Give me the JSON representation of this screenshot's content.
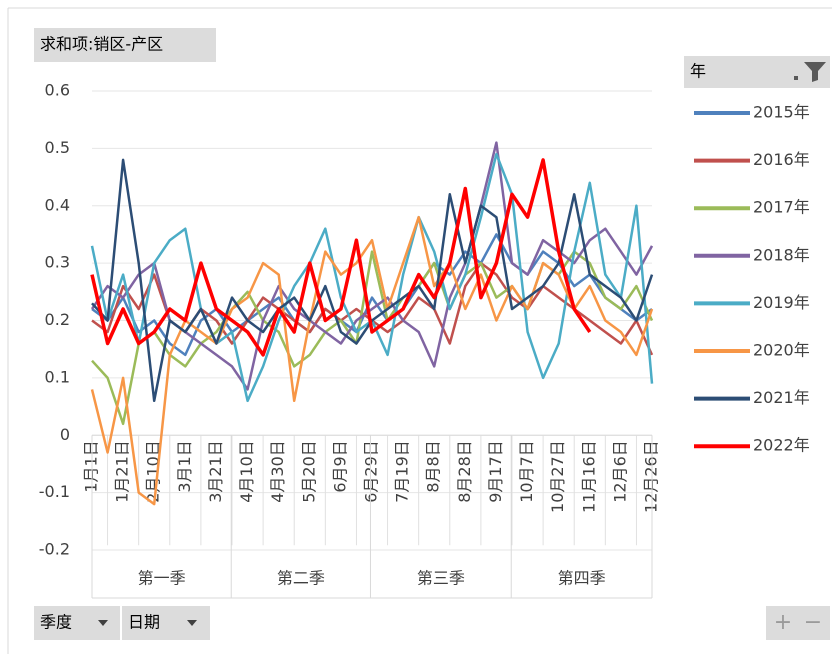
{
  "chart_data": {
    "type": "line",
    "title": "求和项:销区-产区",
    "legend_title": "年",
    "filter_buttons": [
      "季度",
      "日期"
    ],
    "zoom_buttons": [
      "+",
      "−"
    ],
    "groups": [
      "第一季",
      "第二季",
      "第三季",
      "第四季"
    ],
    "categories": [
      "1月1日",
      null,
      "1月21日",
      null,
      "2月10日",
      null,
      "3月1日",
      null,
      "3月21日",
      null,
      "4月10日",
      null,
      "4月30日",
      null,
      "5月20日",
      null,
      "6月9日",
      null,
      "6月29日",
      null,
      "7月19日",
      null,
      "8月8日",
      null,
      "8月28日",
      null,
      "9月17日",
      null,
      "10月7日",
      null,
      "10月27日",
      null,
      "11月16日",
      null,
      "12月6日",
      null,
      "12月26日"
    ],
    "ylim": [
      -0.2,
      0.6
    ],
    "yticks": [
      -0.2,
      -0.1,
      0,
      0.1,
      0.2,
      0.3,
      0.4,
      0.5,
      0.6
    ],
    "grid": true,
    "legend": "right",
    "series": [
      {
        "name": "2015年",
        "color": "#4f81bd",
        "values": [
          0.22,
          0.2,
          0.24,
          0.18,
          0.2,
          0.16,
          0.14,
          0.2,
          0.22,
          0.18,
          0.2,
          0.22,
          0.24,
          0.2,
          0.18,
          0.22,
          0.2,
          0.18,
          0.24,
          0.2,
          0.22,
          0.26,
          0.3,
          0.28,
          0.32,
          0.3,
          0.35,
          0.3,
          0.28,
          0.32,
          0.3,
          0.26,
          0.28,
          0.24,
          0.22,
          0.2,
          0.22
        ]
      },
      {
        "name": "2016年",
        "color": "#c0504d",
        "values": [
          0.2,
          0.18,
          0.26,
          0.22,
          0.28,
          0.2,
          0.18,
          0.22,
          0.2,
          0.16,
          0.2,
          0.24,
          0.22,
          0.2,
          0.18,
          0.22,
          0.2,
          0.22,
          0.2,
          0.18,
          0.2,
          0.24,
          0.22,
          0.16,
          0.26,
          0.3,
          0.28,
          0.24,
          0.22,
          0.26,
          0.24,
          0.22,
          0.2,
          0.18,
          0.16,
          0.2,
          0.14
        ]
      },
      {
        "name": "2017年",
        "color": "#9bbb59",
        "values": [
          0.13,
          0.1,
          0.02,
          0.16,
          0.18,
          0.14,
          0.12,
          0.16,
          0.18,
          0.22,
          0.25,
          0.2,
          0.18,
          0.12,
          0.14,
          0.18,
          0.2,
          0.16,
          0.32,
          0.2,
          0.24,
          0.26,
          0.3,
          0.22,
          0.28,
          0.3,
          0.24,
          0.26,
          0.22,
          0.3,
          0.28,
          0.32,
          0.3,
          0.24,
          0.22,
          0.26,
          0.2
        ]
      },
      {
        "name": "2018年",
        "color": "#8064a2",
        "values": [
          0.22,
          0.26,
          0.24,
          0.28,
          0.3,
          0.2,
          0.18,
          0.16,
          0.14,
          0.12,
          0.08,
          0.2,
          0.26,
          0.22,
          0.2,
          0.18,
          0.16,
          0.2,
          0.22,
          0.24,
          0.2,
          0.18,
          0.12,
          0.24,
          0.3,
          0.4,
          0.51,
          0.3,
          0.28,
          0.34,
          0.32,
          0.3,
          0.34,
          0.36,
          0.32,
          0.28,
          0.33
        ]
      },
      {
        "name": "2019年",
        "color": "#4bacc6",
        "values": [
          0.33,
          0.2,
          0.28,
          0.16,
          0.3,
          0.34,
          0.36,
          0.22,
          0.16,
          0.18,
          0.06,
          0.12,
          0.2,
          0.26,
          0.3,
          0.36,
          0.24,
          0.18,
          0.2,
          0.14,
          0.28,
          0.38,
          0.32,
          0.22,
          0.28,
          0.38,
          0.49,
          0.42,
          0.18,
          0.1,
          0.16,
          0.32,
          0.44,
          0.28,
          0.24,
          0.4,
          0.09
        ]
      },
      {
        "name": "2020年",
        "color": "#f79646",
        "values": [
          0.08,
          -0.03,
          0.1,
          -0.1,
          -0.12,
          0.14,
          0.2,
          0.18,
          0.16,
          0.22,
          0.24,
          0.3,
          0.28,
          0.06,
          0.2,
          0.32,
          0.28,
          0.3,
          0.34,
          0.22,
          0.3,
          0.38,
          0.26,
          0.3,
          0.22,
          0.28,
          0.2,
          0.26,
          0.22,
          0.3,
          0.28,
          0.22,
          0.26,
          0.2,
          0.18,
          0.14,
          0.22
        ]
      },
      {
        "name": "2021年",
        "color": "#2c4d75",
        "values": [
          0.23,
          0.2,
          0.48,
          0.3,
          0.06,
          0.2,
          0.18,
          0.22,
          0.16,
          0.24,
          0.2,
          0.18,
          0.22,
          0.24,
          0.2,
          0.26,
          0.18,
          0.16,
          0.2,
          0.22,
          0.24,
          0.26,
          0.22,
          0.42,
          0.3,
          0.4,
          0.38,
          0.22,
          0.24,
          0.26,
          0.3,
          0.42,
          0.28,
          0.26,
          0.24,
          0.2,
          0.28
        ]
      },
      {
        "name": "2022年",
        "color": "#ff0000",
        "values": [
          0.28,
          0.16,
          0.22,
          0.16,
          0.18,
          0.22,
          0.2,
          0.3,
          0.22,
          0.2,
          0.18,
          0.14,
          0.22,
          0.18,
          0.3,
          0.2,
          0.22,
          0.34,
          0.18,
          0.2,
          0.22,
          0.28,
          0.24,
          0.3,
          0.43,
          0.24,
          0.3,
          0.42,
          0.38,
          0.48,
          0.32,
          0.22,
          0.18,
          null,
          null,
          null,
          null
        ]
      }
    ]
  }
}
